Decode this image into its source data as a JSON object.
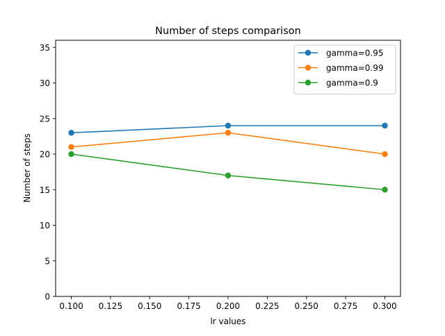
{
  "chart_data": {
    "type": "line",
    "title": "Number of steps comparison",
    "xlabel": "lr values",
    "ylabel": "Number of steps",
    "x": [
      0.1,
      0.2,
      0.3
    ],
    "xlim": [
      0.09,
      0.31
    ],
    "ylim": [
      0,
      36
    ],
    "xticks": [
      0.1,
      0.125,
      0.15,
      0.175,
      0.2,
      0.225,
      0.25,
      0.275,
      0.3
    ],
    "xtick_labels": [
      "0.100",
      "0.125",
      "0.150",
      "0.175",
      "0.200",
      "0.225",
      "0.250",
      "0.275",
      "0.300"
    ],
    "yticks": [
      0,
      5,
      10,
      15,
      20,
      25,
      30,
      35
    ],
    "ytick_labels": [
      "0",
      "5",
      "10",
      "15",
      "20",
      "25",
      "30",
      "35"
    ],
    "grid": false,
    "legend_position": "top-right",
    "series": [
      {
        "name": "gamma=0.95",
        "color": "#1f77b4",
        "values": [
          23,
          24,
          24
        ]
      },
      {
        "name": "gamma=0.99",
        "color": "#ff7f0e",
        "values": [
          21,
          23,
          20
        ]
      },
      {
        "name": "gamma=0.9",
        "color": "#2ca02c",
        "values": [
          20,
          17,
          15
        ]
      }
    ]
  }
}
